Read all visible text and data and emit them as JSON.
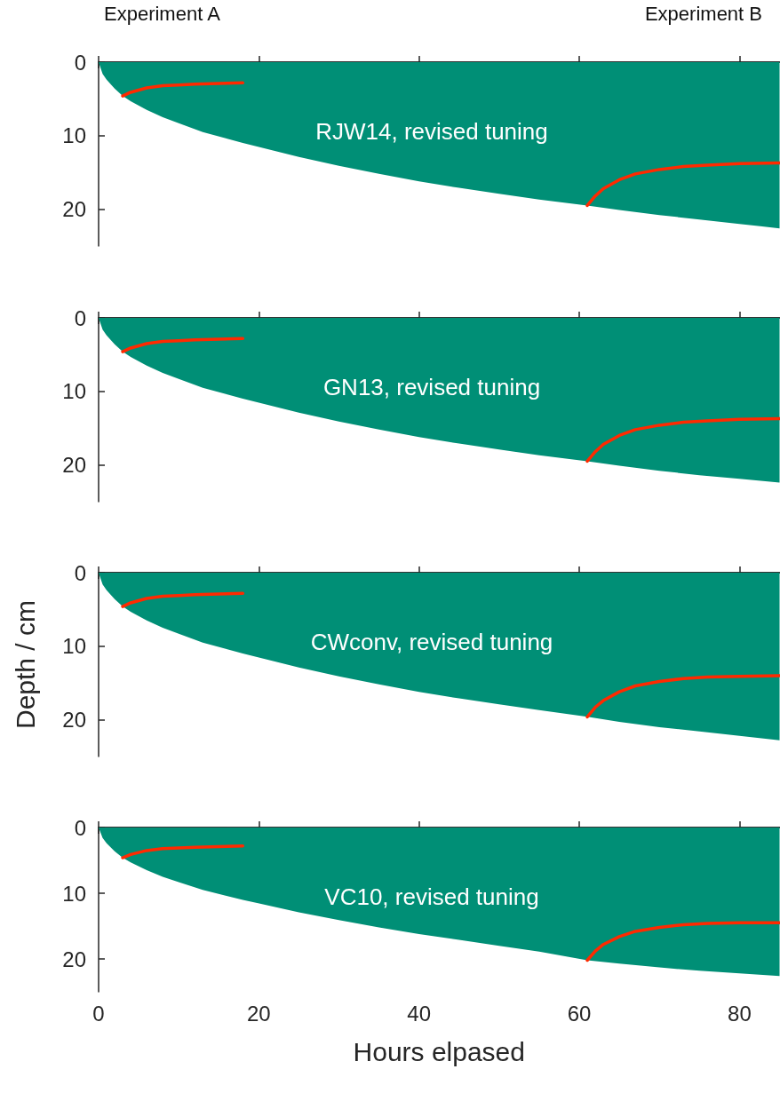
{
  "chart_data": [
    {
      "type": "area",
      "title": "RJW14, revised tuning",
      "annotations": [
        "Experiment A",
        "Experiment B"
      ],
      "x": [
        0,
        0.5,
        1,
        2,
        3,
        4,
        6,
        8,
        10,
        13,
        18,
        25,
        30,
        35,
        40,
        45,
        50,
        55,
        61,
        65,
        70,
        75,
        80,
        85
      ],
      "series": [
        {
          "color": "#008f76",
          "values": [
            0,
            1.6,
            2.4,
            3.6,
            4.6,
            5.3,
            6.5,
            7.5,
            8.3,
            9.5,
            11,
            12.9,
            14.1,
            15.2,
            16.2,
            17.1,
            17.9,
            18.7,
            19.5,
            20.1,
            20.8,
            21.4,
            22,
            22.6
          ]
        },
        {
          "type": "line",
          "color": "#ff2a00",
          "x": [
            3,
            4,
            5,
            6,
            8,
            10,
            12,
            15,
            18
          ],
          "values": [
            4.6,
            4.1,
            3.8,
            3.5,
            3.2,
            3.1,
            3,
            2.9,
            2.8
          ]
        },
        {
          "type": "line",
          "color": "#ff2a00",
          "x": [
            61,
            62,
            63,
            65,
            67,
            70,
            73,
            76,
            80,
            85
          ],
          "values": [
            19.5,
            18.2,
            17.2,
            16,
            15.2,
            14.6,
            14.2,
            14,
            13.8,
            13.7
          ]
        }
      ],
      "xlim": [
        0,
        85
      ],
      "xticks": [
        0,
        20,
        40,
        60,
        80
      ],
      "ylim": [
        25,
        0
      ],
      "yticks": [
        0,
        10,
        20
      ],
      "tick_labels": "y",
      "marker": "none",
      "line_style": "solid"
    },
    {
      "type": "area",
      "title": "GN13, revised tuning",
      "x": [
        0,
        0.5,
        1,
        2,
        3,
        4,
        6,
        8,
        10,
        13,
        18,
        25,
        30,
        35,
        40,
        45,
        50,
        55,
        61,
        65,
        70,
        75,
        80,
        85
      ],
      "series": [
        {
          "color": "#008f76",
          "values": [
            0,
            1.6,
            2.4,
            3.6,
            4.6,
            5.3,
            6.5,
            7.5,
            8.3,
            9.5,
            11,
            12.9,
            14.1,
            15.2,
            16.2,
            17.1,
            17.9,
            18.7,
            19.5,
            20.1,
            20.8,
            21.4,
            21.9,
            22.4
          ]
        },
        {
          "type": "line",
          "color": "#ff2a00",
          "x": [
            3,
            4,
            5,
            6,
            8,
            10,
            12,
            15,
            18
          ],
          "values": [
            4.6,
            4.1,
            3.8,
            3.5,
            3.2,
            3.1,
            3,
            2.9,
            2.8
          ]
        },
        {
          "type": "line",
          "color": "#ff2a00",
          "x": [
            61,
            62,
            63,
            65,
            67,
            70,
            73,
            76,
            80,
            85
          ],
          "values": [
            19.5,
            18.2,
            17.2,
            16,
            15.2,
            14.6,
            14.2,
            14,
            13.8,
            13.7
          ]
        }
      ],
      "xlim": [
        0,
        85
      ],
      "xticks": [
        0,
        20,
        40,
        60,
        80
      ],
      "ylim": [
        25,
        0
      ],
      "yticks": [
        0,
        10,
        20
      ],
      "tick_labels": "y",
      "marker": "none",
      "line_style": "solid"
    },
    {
      "type": "area",
      "title": "CWconv, revised tuning",
      "ylabel": "Depth / cm",
      "x": [
        0,
        0.5,
        1,
        2,
        3,
        4,
        6,
        8,
        10,
        13,
        18,
        25,
        30,
        35,
        40,
        45,
        50,
        55,
        61,
        65,
        70,
        75,
        80,
        85
      ],
      "series": [
        {
          "color": "#008f76",
          "values": [
            0,
            1.6,
            2.4,
            3.6,
            4.6,
            5.3,
            6.5,
            7.5,
            8.3,
            9.5,
            11,
            12.9,
            14.1,
            15.2,
            16.2,
            17.1,
            17.9,
            18.7,
            19.6,
            20.3,
            21,
            21.6,
            22.2,
            22.8
          ]
        },
        {
          "type": "line",
          "color": "#ff2a00",
          "x": [
            3,
            4,
            5,
            6,
            8,
            10,
            12,
            15,
            18
          ],
          "values": [
            4.6,
            4.1,
            3.8,
            3.5,
            3.2,
            3.1,
            3,
            2.9,
            2.8
          ]
        },
        {
          "type": "line",
          "color": "#ff2a00",
          "x": [
            61,
            62,
            63,
            65,
            67,
            70,
            73,
            76,
            80,
            85
          ],
          "values": [
            19.6,
            18.3,
            17.4,
            16.2,
            15.4,
            14.8,
            14.4,
            14.2,
            14.1,
            14
          ]
        }
      ],
      "xlim": [
        0,
        85
      ],
      "xticks": [
        0,
        20,
        40,
        60,
        80
      ],
      "ylim": [
        25,
        0
      ],
      "yticks": [
        0,
        10,
        20
      ],
      "tick_labels": "y",
      "marker": "none",
      "line_style": "solid"
    },
    {
      "type": "area",
      "title": "VC10, revised tuning",
      "xlabel": "Hours elpased",
      "x": [
        0,
        0.5,
        1,
        2,
        3,
        4,
        6,
        8,
        10,
        13,
        18,
        25,
        30,
        35,
        40,
        45,
        50,
        55,
        61,
        65,
        70,
        75,
        80,
        85
      ],
      "series": [
        {
          "color": "#008f76",
          "values": [
            0,
            1.6,
            2.4,
            3.6,
            4.6,
            5.3,
            6.5,
            7.5,
            8.3,
            9.5,
            11,
            12.9,
            14.1,
            15.2,
            16.2,
            17.1,
            18,
            18.9,
            20.2,
            20.7,
            21.3,
            21.8,
            22.2,
            22.6
          ]
        },
        {
          "type": "line",
          "color": "#ff2a00",
          "x": [
            3,
            4,
            5,
            6,
            8,
            10,
            12,
            15,
            18
          ],
          "values": [
            4.6,
            4.1,
            3.8,
            3.5,
            3.2,
            3.1,
            3,
            2.9,
            2.8
          ]
        },
        {
          "type": "line",
          "color": "#ff2a00",
          "x": [
            61,
            62,
            63,
            65,
            67,
            70,
            73,
            76,
            80,
            85
          ],
          "values": [
            20.2,
            18.8,
            17.8,
            16.6,
            15.8,
            15.2,
            14.8,
            14.6,
            14.5,
            14.5
          ]
        }
      ],
      "xlim": [
        0,
        85
      ],
      "xticks": [
        0,
        20,
        40,
        60,
        80
      ],
      "ylim": [
        25,
        0
      ],
      "yticks": [
        0,
        10,
        20
      ],
      "marker": "none",
      "line_style": "solid"
    }
  ]
}
